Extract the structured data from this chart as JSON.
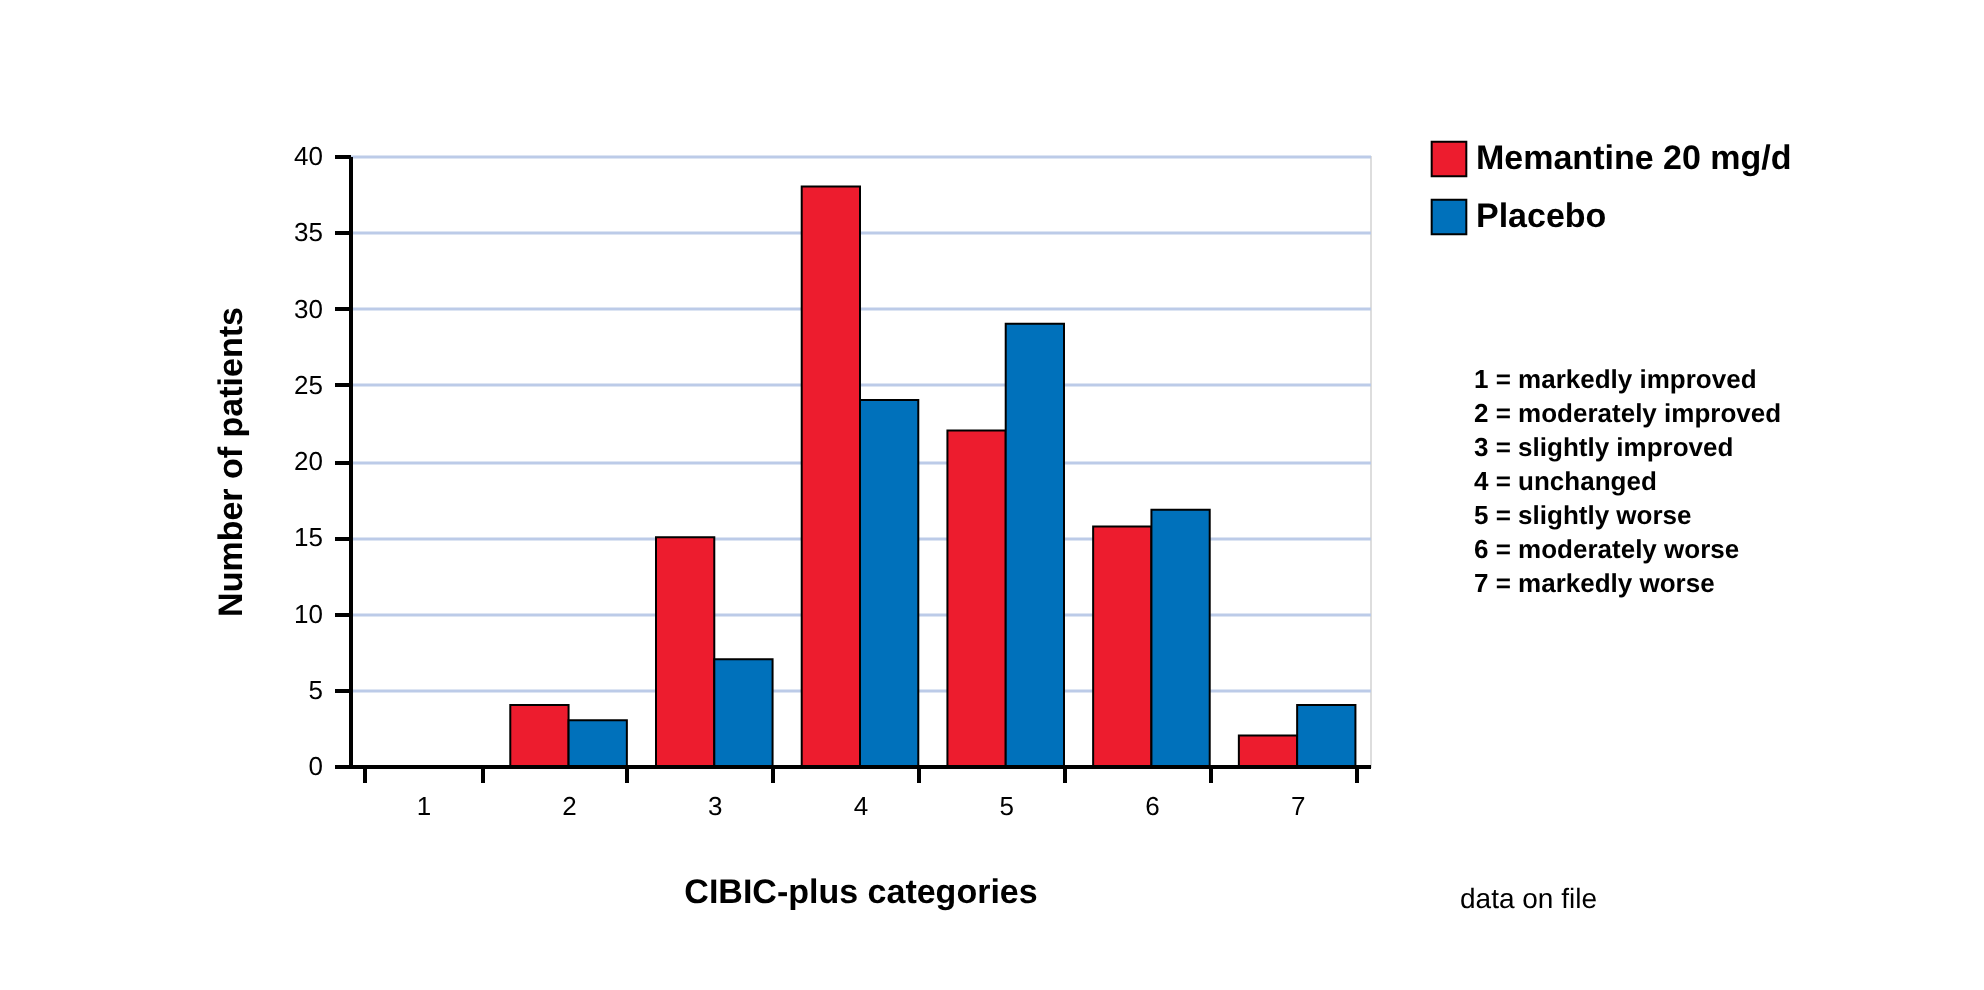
{
  "chart_data": {
    "type": "bar",
    "xlabel": "CIBIC-plus categories",
    "ylabel": "Number of patients",
    "categories": [
      "1",
      "2",
      "3",
      "4",
      "5",
      "6",
      "7"
    ],
    "series": [
      {
        "name": "Memantine 20 mg/d",
        "color": "#ed1c2e",
        "values": [
          0,
          4,
          15,
          38,
          22,
          15.7,
          2
        ]
      },
      {
        "name": "Placebo",
        "color": "#0071bb",
        "values": [
          0,
          3,
          7,
          24,
          29,
          16.8,
          4
        ]
      }
    ],
    "ylim": [
      0,
      40
    ],
    "yticks": [
      0,
      5,
      10,
      15,
      20,
      25,
      30,
      35,
      40
    ],
    "grid": "y",
    "legend": "right",
    "annotations": [
      "1 = markedly improved",
      "2 = moderately improved",
      "3 = slightly improved",
      "4 = unchanged",
      "5 = slightly worse",
      "6 = moderately worse",
      "7 = markedly worse",
      "data on file"
    ]
  }
}
